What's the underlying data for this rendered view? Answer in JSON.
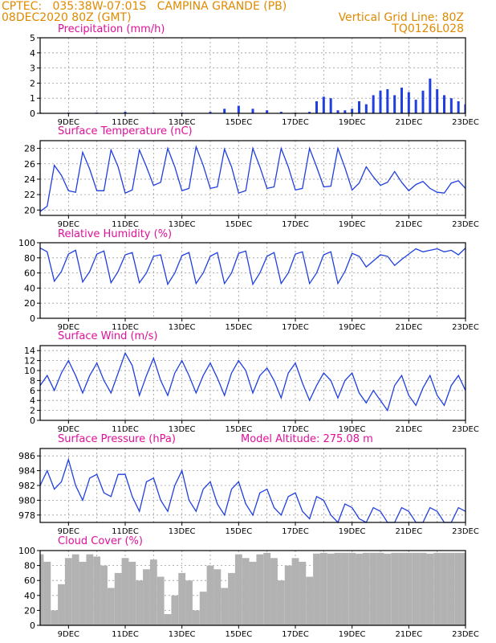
{
  "header": {
    "line1_left": "CPTEC:   035:38W-07:01S   CAMPINA GRANDE (PB)",
    "line2_left": "08DEC2020 80Z (GMT)",
    "grid_note": "Vertical Grid Line: 80Z",
    "code": "TQ0126L028",
    "title_color": "#e08a00"
  },
  "colors": {
    "line": "#1f3fe0",
    "bar": "#1f3fe0",
    "cloud": "#b2b2b2",
    "title": "#e0109a",
    "grid": "#9a9a9a"
  },
  "x_axis": {
    "start_day": 8,
    "end_day": 23,
    "tick_days": [
      9,
      11,
      13,
      15,
      17,
      19,
      21,
      23
    ],
    "tick_labels": [
      "9DEC",
      "11DEC",
      "13DEC",
      "15DEC",
      "17DEC",
      "19DEC",
      "21DEC",
      "23DEC"
    ]
  },
  "panels": [
    {
      "id": "precip",
      "title": "Precipitation (mm/h)",
      "type": "bar",
      "ylim": [
        0,
        5
      ],
      "yticks": [
        0,
        1,
        2,
        3,
        4,
        5
      ]
    },
    {
      "id": "temp",
      "title": "Surface Temperature (nC)",
      "type": "line",
      "ylim": [
        19.3,
        29
      ],
      "yticks": [
        20,
        22,
        24,
        26,
        28
      ]
    },
    {
      "id": "rh",
      "title": "Relative Humidity (%)",
      "type": "line",
      "ylim": [
        0,
        100
      ],
      "yticks": [
        0,
        20,
        40,
        60,
        80,
        100
      ]
    },
    {
      "id": "wind",
      "title": "Surface Wind (m/s)",
      "type": "line",
      "ylim": [
        0,
        15
      ],
      "yticks": [
        0,
        2,
        4,
        6,
        8,
        10,
        12,
        14
      ]
    },
    {
      "id": "pres",
      "title": "Surface Pressure (hPa)",
      "extra": "Model Altitude: 275.08 m",
      "type": "line",
      "ylim": [
        977,
        987
      ],
      "yticks": [
        978,
        980,
        982,
        984,
        986
      ]
    },
    {
      "id": "cloud",
      "title": "Cloud Cover (%)",
      "type": "bar",
      "ylim": [
        0,
        100
      ],
      "yticks": [
        0,
        20,
        40,
        60,
        80,
        100
      ]
    }
  ],
  "chart_data": [
    {
      "type": "bar",
      "title": "Precipitation (mm/h)",
      "ylabel": "mm/h",
      "ylim": [
        0,
        5
      ],
      "x": [
        8.0,
        9.0,
        10.0,
        11.0,
        12.0,
        13.0,
        14.0,
        14.5,
        15.0,
        15.5,
        16.0,
        16.5,
        17.0,
        17.5,
        17.75,
        18.0,
        18.25,
        18.5,
        18.75,
        19.0,
        19.25,
        19.5,
        19.75,
        20.0,
        20.25,
        20.5,
        20.75,
        21.0,
        21.25,
        21.5,
        21.75,
        22.0,
        22.25,
        22.5,
        22.75,
        23.0
      ],
      "values": [
        0.05,
        0.05,
        0.05,
        0.1,
        0.05,
        0.05,
        0.1,
        0.3,
        0.5,
        0.3,
        0.2,
        0.1,
        0.05,
        0.1,
        0.8,
        1.1,
        1.0,
        0.2,
        0.2,
        0.3,
        0.8,
        0.6,
        1.2,
        1.5,
        1.6,
        1.2,
        1.7,
        1.4,
        0.9,
        1.5,
        2.3,
        1.6,
        1.2,
        1.0,
        0.8,
        0.6
      ]
    },
    {
      "type": "line",
      "title": "Surface Temperature (nC)",
      "ylabel": "nC",
      "ylim": [
        19.3,
        29
      ],
      "x": [
        8.0,
        8.25,
        8.5,
        8.75,
        9.0,
        9.25,
        9.5,
        9.75,
        10.0,
        10.25,
        10.5,
        10.75,
        11.0,
        11.25,
        11.5,
        11.75,
        12.0,
        12.25,
        12.5,
        12.75,
        13.0,
        13.25,
        13.5,
        13.75,
        14.0,
        14.25,
        14.5,
        14.75,
        15.0,
        15.25,
        15.5,
        15.75,
        16.0,
        16.25,
        16.5,
        16.75,
        17.0,
        17.25,
        17.5,
        17.75,
        18.0,
        18.25,
        18.5,
        18.75,
        19.0,
        19.25,
        19.5,
        19.75,
        20.0,
        20.25,
        20.5,
        20.75,
        21.0,
        21.25,
        21.5,
        21.75,
        22.0,
        22.25,
        22.5,
        22.75,
        23.0
      ],
      "values": [
        19.8,
        20.5,
        25.8,
        24.5,
        22.5,
        22.3,
        27.5,
        25.3,
        22.5,
        22.5,
        27.8,
        25.6,
        22.2,
        22.6,
        27.8,
        25.6,
        23.2,
        23.6,
        28.0,
        25.6,
        22.5,
        22.8,
        28.2,
        25.8,
        22.8,
        23.0,
        27.9,
        25.6,
        22.2,
        22.5,
        28.0,
        25.6,
        22.8,
        23.0,
        28.0,
        25.6,
        22.6,
        22.8,
        28.0,
        25.6,
        23.0,
        23.1,
        28.0,
        25.5,
        22.6,
        23.5,
        25.6,
        24.3,
        23.2,
        23.6,
        25.0,
        23.6,
        22.5,
        23.3,
        23.7,
        22.8,
        22.3,
        22.2,
        23.5,
        23.8,
        22.8
      ]
    },
    {
      "type": "line",
      "title": "Relative Humidity (%)",
      "ylabel": "%",
      "ylim": [
        0,
        100
      ],
      "x": [
        8.0,
        8.25,
        8.5,
        8.75,
        9.0,
        9.25,
        9.5,
        9.75,
        10.0,
        10.25,
        10.5,
        10.75,
        11.0,
        11.25,
        11.5,
        11.75,
        12.0,
        12.25,
        12.5,
        12.75,
        13.0,
        13.25,
        13.5,
        13.75,
        14.0,
        14.25,
        14.5,
        14.75,
        15.0,
        15.25,
        15.5,
        15.75,
        16.0,
        16.25,
        16.5,
        16.75,
        17.0,
        17.25,
        17.5,
        17.75,
        18.0,
        18.25,
        18.5,
        18.75,
        19.0,
        19.25,
        19.5,
        19.75,
        20.0,
        20.25,
        20.5,
        20.75,
        21.0,
        21.25,
        21.5,
        21.75,
        22.0,
        22.25,
        22.5,
        22.75,
        23.0
      ],
      "values": [
        93,
        88,
        49,
        62,
        85,
        90,
        48,
        62,
        85,
        89,
        47,
        62,
        84,
        87,
        47,
        60,
        82,
        84,
        45,
        60,
        83,
        87,
        46,
        60,
        82,
        87,
        46,
        60,
        86,
        89,
        45,
        60,
        82,
        87,
        46,
        60,
        85,
        88,
        46,
        60,
        84,
        88,
        46,
        62,
        86,
        82,
        68,
        76,
        84,
        82,
        70,
        78,
        85,
        92,
        88,
        90,
        92,
        88,
        90,
        84,
        93
      ]
    },
    {
      "type": "line",
      "title": "Surface Wind (m/s)",
      "ylabel": "m/s",
      "ylim": [
        0,
        15
      ],
      "x": [
        8.0,
        8.25,
        8.5,
        8.75,
        9.0,
        9.25,
        9.5,
        9.75,
        10.0,
        10.25,
        10.5,
        10.75,
        11.0,
        11.25,
        11.5,
        11.75,
        12.0,
        12.25,
        12.5,
        12.75,
        13.0,
        13.25,
        13.5,
        13.75,
        14.0,
        14.25,
        14.5,
        14.75,
        15.0,
        15.25,
        15.5,
        15.75,
        16.0,
        16.25,
        16.5,
        16.75,
        17.0,
        17.25,
        17.5,
        17.75,
        18.0,
        18.25,
        18.5,
        18.75,
        19.0,
        19.25,
        19.5,
        19.75,
        20.0,
        20.25,
        20.5,
        20.75,
        21.0,
        21.25,
        21.5,
        21.75,
        22.0,
        22.25,
        22.5,
        22.75,
        23.0
      ],
      "values": [
        7,
        9,
        6,
        9.5,
        12,
        9,
        5.5,
        9,
        11.5,
        8,
        5.5,
        9.5,
        13.5,
        11,
        5,
        9,
        12.5,
        8,
        5,
        9.5,
        12,
        9,
        5.5,
        9,
        11.5,
        8.5,
        5,
        9.5,
        12,
        10,
        5.5,
        9,
        10.5,
        8,
        4.5,
        9.5,
        11.5,
        7.5,
        4,
        7,
        9.5,
        8,
        4.5,
        8,
        9.5,
        5.5,
        3.5,
        6,
        4,
        2,
        7,
        9,
        5,
        3,
        6.5,
        9,
        5,
        3,
        7,
        9,
        6
      ]
    },
    {
      "type": "line",
      "title": "Surface Pressure (hPa)",
      "ylabel": "hPa",
      "ylim": [
        977,
        987
      ],
      "x": [
        8.0,
        8.25,
        8.5,
        8.75,
        9.0,
        9.25,
        9.5,
        9.75,
        10.0,
        10.25,
        10.5,
        10.75,
        11.0,
        11.25,
        11.5,
        11.75,
        12.0,
        12.25,
        12.5,
        12.75,
        13.0,
        13.25,
        13.5,
        13.75,
        14.0,
        14.25,
        14.5,
        14.75,
        15.0,
        15.25,
        15.5,
        15.75,
        16.0,
        16.25,
        16.5,
        16.75,
        17.0,
        17.25,
        17.5,
        17.75,
        18.0,
        18.25,
        18.5,
        18.75,
        19.0,
        19.25,
        19.5,
        19.75,
        20.0,
        20.25,
        20.5,
        20.75,
        21.0,
        21.25,
        21.5,
        21.75,
        22.0,
        22.25,
        22.5,
        22.75,
        23.0
      ],
      "values": [
        982,
        984,
        981.5,
        982.5,
        985.5,
        982,
        980,
        983,
        983.5,
        981,
        980.5,
        983.5,
        983.5,
        980.5,
        978.5,
        982.5,
        983,
        980,
        978.5,
        982,
        984,
        980,
        978.5,
        981.5,
        982.5,
        979.5,
        978,
        981.5,
        982.5,
        979.5,
        978,
        981,
        981.5,
        979,
        978,
        980.5,
        981,
        978.5,
        977.5,
        980.5,
        980,
        978,
        977,
        979.5,
        979,
        977.5,
        977,
        979,
        978.5,
        977,
        977,
        979,
        978.5,
        977,
        977,
        979,
        978.5,
        977,
        977,
        979,
        978.5
      ]
    },
    {
      "type": "bar",
      "title": "Cloud Cover (%)",
      "ylabel": "%",
      "ylim": [
        0,
        100
      ],
      "x": [
        8.0,
        8.25,
        8.5,
        8.75,
        9.0,
        9.25,
        9.5,
        9.75,
        10.0,
        10.25,
        10.5,
        10.75,
        11.0,
        11.25,
        11.5,
        11.75,
        12.0,
        12.25,
        12.5,
        12.75,
        13.0,
        13.25,
        13.5,
        13.75,
        14.0,
        14.25,
        14.5,
        14.75,
        15.0,
        15.25,
        15.5,
        15.75,
        16.0,
        16.25,
        16.5,
        16.75,
        17.0,
        17.25,
        17.5,
        17.75,
        18.0,
        18.25,
        18.5,
        18.75,
        19.0,
        19.25,
        19.5,
        19.75,
        20.0,
        20.25,
        20.5,
        20.75,
        21.0,
        21.25,
        21.5,
        21.75,
        22.0,
        22.25,
        22.5,
        22.75,
        23.0
      ],
      "values": [
        95,
        85,
        20,
        55,
        90,
        95,
        85,
        95,
        92,
        80,
        50,
        70,
        90,
        85,
        60,
        75,
        88,
        65,
        15,
        40,
        70,
        60,
        20,
        45,
        80,
        75,
        50,
        70,
        95,
        90,
        85,
        95,
        97,
        90,
        60,
        80,
        90,
        85,
        65,
        96,
        97,
        96,
        97,
        97,
        97,
        96,
        97,
        97,
        97,
        96,
        97,
        97,
        97,
        97,
        97,
        96,
        97,
        97,
        97,
        97,
        97
      ]
    }
  ]
}
